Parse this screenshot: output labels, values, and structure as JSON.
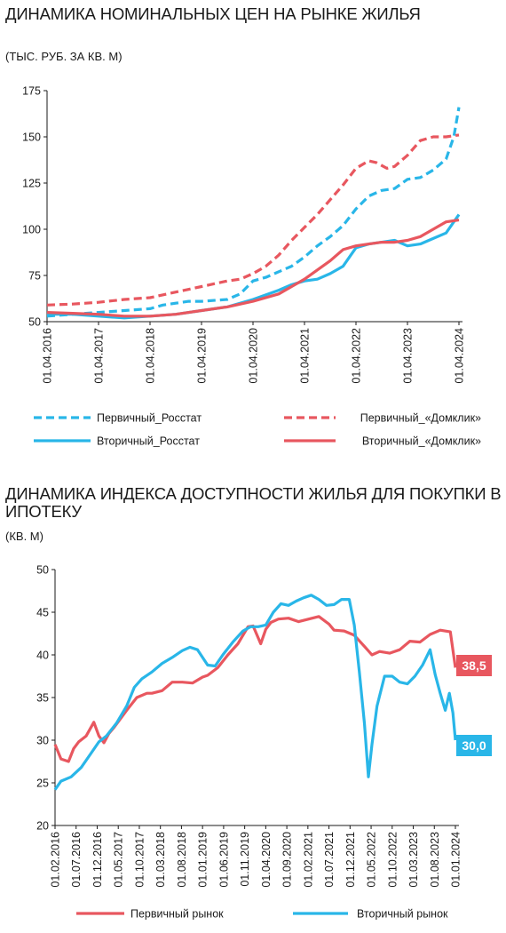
{
  "chart_data": [
    {
      "type": "line",
      "title": "ДИНАМИКА НОМИНАЛЬНЫХ ЦЕН НА РЫНКЕ ЖИЛЬЯ",
      "subtitle": "(ТЫС. РУБ. ЗА КВ. М)",
      "ylim": [
        50,
        175
      ],
      "yticks": [
        "50",
        "75",
        "100",
        "125",
        "150",
        "175"
      ],
      "xlim": [
        2016.0,
        2024.0
      ],
      "xticks": [
        "01.04.2016",
        "01.04.2017",
        "01.04.2018",
        "01.04.2019",
        "01.04.2020",
        "01.04.2021",
        "01.04.2022",
        "01.04.2023",
        "01.04.2024"
      ],
      "grid": false,
      "legend": "bottom",
      "series": [
        {
          "name": "Первичный_Росстат",
          "color": "#29b6e8",
          "dash": true,
          "x": [
            2016.0,
            2016.5,
            2017.0,
            2017.5,
            2018.0,
            2018.25,
            2018.5,
            2018.75,
            2019.0,
            2019.5,
            2019.75,
            2020.0,
            2020.25,
            2020.5,
            2020.75,
            2021.0,
            2021.25,
            2021.5,
            2021.75,
            2022.0,
            2022.25,
            2022.5,
            2022.75,
            2023.0,
            2023.25,
            2023.5,
            2023.75,
            2023.9,
            2024.0
          ],
          "y": [
            53,
            54,
            55,
            56,
            57,
            59,
            60,
            61,
            61,
            62,
            65,
            72,
            74,
            77,
            80,
            85,
            91,
            96,
            102,
            111,
            118,
            121,
            122,
            127,
            128,
            132,
            138,
            150,
            166
          ]
        },
        {
          "name": "Первичный_«Домклик»",
          "color": "#e8575f",
          "dash": true,
          "x": [
            2016.0,
            2016.5,
            2017.0,
            2017.5,
            2018.0,
            2018.5,
            2019.0,
            2019.5,
            2019.75,
            2020.0,
            2020.25,
            2020.5,
            2020.75,
            2021.0,
            2021.25,
            2021.5,
            2021.75,
            2022.0,
            2022.25,
            2022.4,
            2022.6,
            2022.75,
            2023.0,
            2023.25,
            2023.5,
            2023.75,
            2024.0
          ],
          "y": [
            59,
            59.5,
            60.5,
            62,
            63,
            66,
            69,
            72,
            73,
            76,
            80,
            86,
            94,
            101,
            108,
            116,
            124,
            133,
            137,
            136,
            133,
            134,
            140,
            148,
            150,
            150,
            151
          ]
        },
        {
          "name": "Вторичный_Росстат",
          "color": "#29b6e8",
          "dash": false,
          "x": [
            2016.0,
            2016.5,
            2017.0,
            2017.5,
            2018.0,
            2018.5,
            2019.0,
            2019.5,
            2020.0,
            2020.5,
            2020.75,
            2021.0,
            2021.25,
            2021.5,
            2021.75,
            2021.9,
            2022.0,
            2022.25,
            2022.5,
            2022.75,
            2023.0,
            2023.25,
            2023.5,
            2023.75,
            2024.0
          ],
          "y": [
            54,
            54,
            53,
            52,
            53,
            54,
            56,
            58,
            62,
            67,
            70,
            72,
            73,
            76,
            80,
            86,
            90,
            92,
            93,
            94,
            91,
            92,
            95,
            98,
            108
          ]
        },
        {
          "name": "Вторичный_«Домклик»",
          "color": "#e8575f",
          "dash": false,
          "x": [
            2016.0,
            2016.5,
            2017.0,
            2017.5,
            2018.0,
            2018.5,
            2019.0,
            2019.5,
            2020.0,
            2020.5,
            2020.75,
            2021.0,
            2021.25,
            2021.5,
            2021.75,
            2022.0,
            2022.25,
            2022.5,
            2022.75,
            2023.0,
            2023.25,
            2023.5,
            2023.75,
            2024.0
          ],
          "y": [
            55,
            54.5,
            54,
            53,
            53,
            54,
            56,
            58,
            61,
            65,
            69,
            73,
            78,
            83,
            89,
            91,
            92,
            93,
            93,
            94,
            96,
            100,
            104,
            105
          ]
        }
      ]
    },
    {
      "type": "line",
      "title": "ДИНАМИКА ИНДЕКСА ДОСТУПНОСТИ ЖИЛЬЯ ДЛЯ ПОКУПКИ В ИПОТЕКУ",
      "subtitle": "(КВ. М)",
      "ylim": [
        20,
        50
      ],
      "yticks": [
        "20",
        "25",
        "30",
        "35",
        "40",
        "45",
        "50"
      ],
      "xlim": [
        2016.083,
        2024.0
      ],
      "xticks": [
        "01.02.2016",
        "01.07.2016",
        "01.12.2016",
        "01.05.2017",
        "01.10.2017",
        "01.03.2018",
        "01.08.2018",
        "01.01.2019",
        "01.06.2019",
        "01.11.2019",
        "01.04.2020",
        "01.09.2020",
        "01.02.2021",
        "01.07.2021",
        "01.12.2021",
        "01.05.2022",
        "01.10.2022",
        "01.03.2023",
        "01.08.2023",
        "01.01.2024"
      ],
      "grid": false,
      "legend": "bottom",
      "end_labels": {
        "primary": "38,5",
        "secondary": "30,0"
      },
      "series": [
        {
          "name": "Первичный рынок",
          "color": "#e8575f",
          "x": [
            2016.083,
            2016.2,
            2016.35,
            2016.45,
            2016.55,
            2016.7,
            2016.85,
            2016.95,
            2017.05,
            2017.15,
            2017.25,
            2017.35,
            2017.5,
            2017.7,
            2017.9,
            2018.0,
            2018.2,
            2018.4,
            2018.6,
            2018.8,
            2019.0,
            2019.1,
            2019.3,
            2019.5,
            2019.7,
            2019.9,
            2020.0,
            2020.15,
            2020.25,
            2020.35,
            2020.5,
            2020.7,
            2020.9,
            2021.1,
            2021.3,
            2021.5,
            2021.6,
            2021.8,
            2022.0,
            2022.2,
            2022.35,
            2022.5,
            2022.7,
            2022.9,
            2023.1,
            2023.3,
            2023.5,
            2023.7,
            2023.9,
            2024.0
          ],
          "y": [
            29.5,
            27.8,
            27.5,
            29,
            29.8,
            30.5,
            32.1,
            30.5,
            29.7,
            30.8,
            31.5,
            32.3,
            33.5,
            35,
            35.5,
            35.5,
            35.8,
            36.8,
            36.8,
            36.7,
            37.4,
            37.6,
            38.5,
            40,
            41.3,
            43.3,
            43.4,
            41.3,
            43,
            43.8,
            44.2,
            44.3,
            43.9,
            44.2,
            44.5,
            43.6,
            42.9,
            42.8,
            42.3,
            41,
            40,
            40.4,
            40.2,
            40.6,
            41.6,
            41.5,
            42.4,
            42.9,
            42.7,
            38.5
          ]
        },
        {
          "name": "Вторичный рынок",
          "color": "#29b6e8",
          "x": [
            2016.083,
            2016.2,
            2016.4,
            2016.6,
            2016.8,
            2016.95,
            2017.1,
            2017.3,
            2017.5,
            2017.65,
            2017.8,
            2018.0,
            2018.2,
            2018.4,
            2018.6,
            2018.75,
            2018.9,
            2019.1,
            2019.25,
            2019.4,
            2019.6,
            2019.8,
            2019.95,
            2020.1,
            2020.25,
            2020.4,
            2020.55,
            2020.7,
            2020.85,
            2021.0,
            2021.15,
            2021.3,
            2021.45,
            2021.6,
            2021.75,
            2021.9,
            2022.0,
            2022.1,
            2022.2,
            2022.28,
            2022.35,
            2022.45,
            2022.6,
            2022.75,
            2022.9,
            2023.05,
            2023.2,
            2023.35,
            2023.5,
            2023.6,
            2023.7,
            2023.8,
            2023.88,
            2023.95,
            2024.0
          ],
          "y": [
            24.2,
            25.2,
            25.7,
            26.8,
            28.5,
            29.8,
            30.5,
            32,
            34,
            36.2,
            37.2,
            38,
            39,
            39.7,
            40.5,
            40.9,
            40.6,
            38.8,
            38.7,
            40,
            41.5,
            42.8,
            43.3,
            43.3,
            43.5,
            45,
            46,
            45.8,
            46.3,
            46.7,
            47,
            46.5,
            45.8,
            45.9,
            46.5,
            46.5,
            43.5,
            38,
            32,
            25.7,
            29.5,
            34,
            37.5,
            37.5,
            36.8,
            36.6,
            37.5,
            38.8,
            40.6,
            37.7,
            35.5,
            33.5,
            35.5,
            33.2,
            30
          ]
        }
      ]
    }
  ]
}
